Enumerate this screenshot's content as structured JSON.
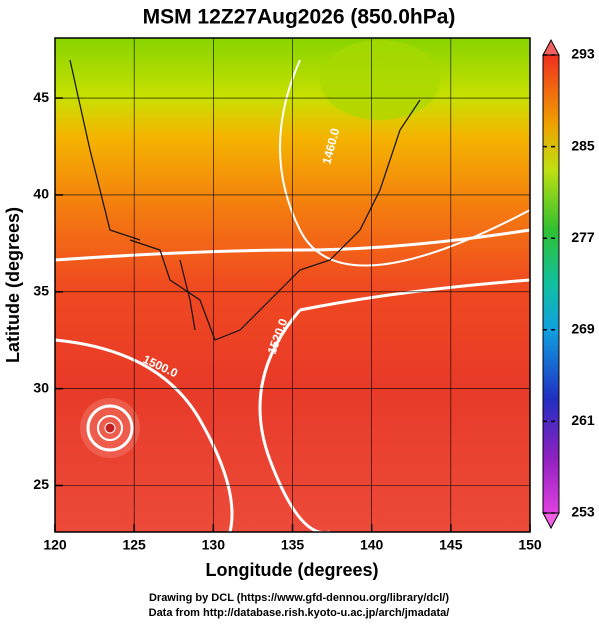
{
  "chart_data": {
    "type": "map",
    "title": "MSM 12Z27Aug2026 (850.0hPa)",
    "x_label": "Longitude (degrees)",
    "y_label": "Latitude  (degrees)",
    "xlim": [
      120,
      150
    ],
    "xticks": [
      120,
      125,
      130,
      135,
      140,
      145,
      150
    ],
    "ylim": [
      22.6,
      48.1
    ],
    "yticks": [
      25,
      30,
      35,
      40,
      45
    ],
    "grid": true,
    "colorbar": {
      "lim": [
        253,
        293
      ],
      "ticks": [
        253,
        261,
        269,
        277,
        285,
        293
      ]
    },
    "annotations": [
      "1520.0",
      "1500.0",
      "1460.0"
    ],
    "footer": [
      "Drawing by DCL (https://www.gfd-dennou.org/library/dcl/)",
      "Data from http://database.rish.kyoto-u.ac.jp/arch/jmadata/"
    ]
  }
}
